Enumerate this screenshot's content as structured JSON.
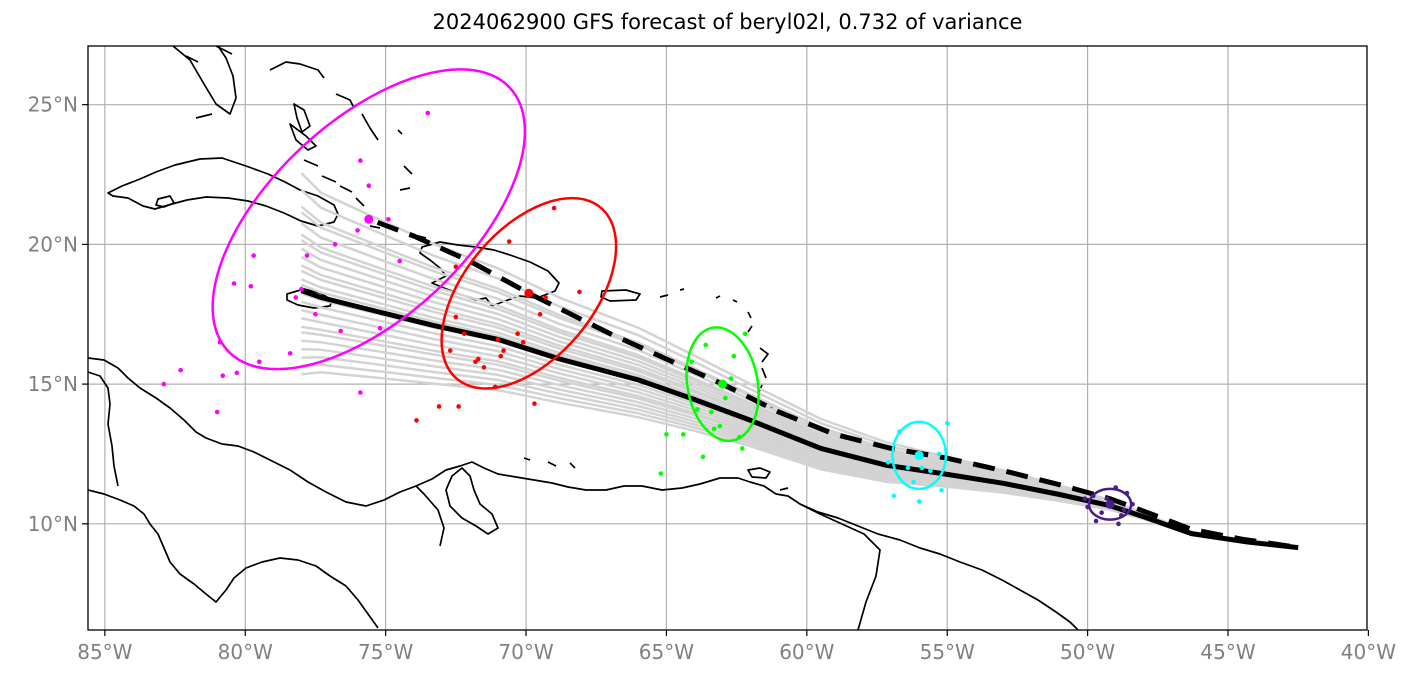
{
  "title": "2024062900 GFS forecast of beryl02l, 0.732 of variance",
  "axes": {
    "x_ticks": [
      {
        "lon": -85,
        "label": "85°W"
      },
      {
        "lon": -80,
        "label": "80°W"
      },
      {
        "lon": -75,
        "label": "75°W"
      },
      {
        "lon": -70,
        "label": "70°W"
      },
      {
        "lon": -65,
        "label": "65°W"
      },
      {
        "lon": -60,
        "label": "60°W"
      },
      {
        "lon": -55,
        "label": "55°W"
      },
      {
        "lon": -50,
        "label": "50°W"
      },
      {
        "lon": -45,
        "label": "45°W"
      },
      {
        "lon": -40,
        "label": "40°W"
      }
    ],
    "y_ticks": [
      {
        "lat": 10,
        "label": "10°N"
      },
      {
        "lat": 15,
        "label": "15°N"
      },
      {
        "lat": 20,
        "label": "20°N"
      },
      {
        "lat": 25,
        "label": "25°N"
      }
    ]
  },
  "chart_data": {
    "type": "map-track",
    "extent": {
      "lon": [
        -85.6,
        -40.05
      ],
      "lat": [
        6.2,
        27.1
      ]
    },
    "grid": true,
    "colors": {
      "ensemble": "#d3d3d3",
      "mean_track": "#000000",
      "coast": "#000000",
      "grid": "#b0b0b0"
    },
    "mean_track": [
      [
        -42.5,
        9.15
      ],
      [
        -44.3,
        9.35
      ],
      [
        -46.3,
        9.65
      ],
      [
        -48.0,
        10.25
      ],
      [
        -49.2,
        10.65
      ],
      [
        -51.0,
        11.05
      ],
      [
        -53.0,
        11.45
      ],
      [
        -55.2,
        11.8
      ],
      [
        -57.2,
        12.1
      ],
      [
        -59.5,
        12.7
      ],
      [
        -62.0,
        13.7
      ],
      [
        -64.0,
        14.45
      ],
      [
        -66.0,
        15.15
      ],
      [
        -68.8,
        15.9
      ],
      [
        -71.0,
        16.6
      ],
      [
        -73.3,
        17.1
      ],
      [
        -75.3,
        17.6
      ],
      [
        -77.3,
        18.1
      ],
      [
        -78.0,
        18.35
      ]
    ],
    "control_track": [
      [
        -42.8,
        9.2
      ],
      [
        -44.5,
        9.45
      ],
      [
        -46.3,
        9.8
      ],
      [
        -48.0,
        10.45
      ],
      [
        -49.2,
        10.9
      ],
      [
        -51.0,
        11.4
      ],
      [
        -53.0,
        11.9
      ],
      [
        -55.0,
        12.35
      ],
      [
        -57.0,
        12.7
      ],
      [
        -59.0,
        13.2
      ],
      [
        -61.0,
        14.0
      ],
      [
        -63.0,
        15.0
      ],
      [
        -65.0,
        15.9
      ],
      [
        -67.0,
        16.8
      ],
      [
        -69.8,
        18.2
      ],
      [
        -72.0,
        19.4
      ],
      [
        -74.0,
        20.3
      ],
      [
        -75.6,
        20.9
      ]
    ],
    "members_offsets": [
      [
        0.0,
        -0.1
      ],
      [
        0.0,
        2.4
      ],
      [
        0.0,
        -2.1
      ],
      [
        0.0,
        1.5
      ],
      [
        0.0,
        -1.3
      ],
      [
        0.0,
        0.9
      ],
      [
        0.0,
        -0.7
      ],
      [
        0.0,
        3.6
      ],
      [
        0.0,
        -2.7
      ],
      [
        0.0,
        2.0
      ],
      [
        0.0,
        -1.8
      ],
      [
        0.0,
        0.4
      ],
      [
        0.0,
        1.2
      ],
      [
        0.0,
        -0.4
      ],
      [
        0.0,
        3.0
      ],
      [
        0.0,
        -3.0
      ],
      [
        0.0,
        2.8
      ],
      [
        0.0,
        -1.0
      ],
      [
        0.0,
        0.7
      ],
      [
        0.0,
        1.8
      ],
      [
        0.0,
        -2.4
      ],
      [
        0.0,
        4.2
      ],
      [
        0.0,
        -1.5
      ],
      [
        0.0,
        0.2
      ]
    ],
    "forecast_clusters": [
      {
        "color": "#4b1c8c",
        "mean": [
          -49.2,
          10.7
        ],
        "ellipse": {
          "rx": 0.75,
          "ry": 0.55,
          "angle": 0
        },
        "points": [
          [
            -49.8,
            11.0
          ],
          [
            -48.8,
            10.3
          ],
          [
            -49.5,
            10.4
          ],
          [
            -48.6,
            11.1
          ],
          [
            -50.0,
            10.6
          ],
          [
            -49.0,
            11.3
          ],
          [
            -48.4,
            10.7
          ],
          [
            -49.7,
            10.1
          ],
          [
            -48.9,
            10.0
          ],
          [
            -50.1,
            10.9
          ],
          [
            -49.3,
            10.9
          ],
          [
            -48.7,
            10.5
          ]
        ]
      },
      {
        "color": "#00ffff",
        "mean": [
          -56.0,
          12.45
        ],
        "ellipse": {
          "rx": 0.95,
          "ry": 1.2,
          "angle": 0
        },
        "points": [
          [
            -56.4,
            12.0
          ],
          [
            -55.6,
            11.9
          ],
          [
            -55.0,
            13.6
          ],
          [
            -56.9,
            11.0
          ],
          [
            -56.0,
            10.8
          ],
          [
            -55.2,
            11.2
          ],
          [
            -56.7,
            13.3
          ],
          [
            -55.3,
            12.5
          ],
          [
            -57.1,
            12.2
          ],
          [
            -55.9,
            12.0
          ],
          [
            -56.2,
            11.5
          ]
        ]
      },
      {
        "color": "#00ff00",
        "mean": [
          -63.0,
          15.0
        ],
        "ellipse": {
          "rx": 1.25,
          "ry": 2.05,
          "angle": -10
        },
        "points": [
          [
            -63.4,
            14.0
          ],
          [
            -63.3,
            13.4
          ],
          [
            -62.7,
            15.2
          ],
          [
            -64.1,
            15.8
          ],
          [
            -64.4,
            13.2
          ],
          [
            -63.1,
            13.5
          ],
          [
            -62.4,
            13.1
          ],
          [
            -65.2,
            11.8
          ],
          [
            -63.7,
            12.4
          ],
          [
            -62.6,
            16.0
          ],
          [
            -62.2,
            16.8
          ],
          [
            -63.9,
            14.1
          ],
          [
            -62.9,
            14.5
          ],
          [
            -62.3,
            12.7
          ],
          [
            -65.0,
            13.2
          ],
          [
            -63.6,
            16.4
          ]
        ]
      },
      {
        "color": "#ff0000",
        "mean": [
          -69.9,
          18.25
        ],
        "ellipse": {
          "rx": 2.3,
          "ry": 4.0,
          "angle": 40
        },
        "points": [
          [
            -71.0,
            16.6
          ],
          [
            -72.5,
            17.4
          ],
          [
            -72.7,
            16.2
          ],
          [
            -73.1,
            14.2
          ],
          [
            -71.7,
            15.9
          ],
          [
            -71.8,
            15.8
          ],
          [
            -70.9,
            16.0
          ],
          [
            -70.8,
            16.2
          ],
          [
            -69.5,
            17.5
          ],
          [
            -69.7,
            14.3
          ],
          [
            -68.1,
            18.3
          ],
          [
            -69.0,
            21.3
          ],
          [
            -70.6,
            20.1
          ],
          [
            -71.5,
            15.6
          ],
          [
            -72.2,
            16.8
          ],
          [
            -72.4,
            14.2
          ],
          [
            -71.1,
            14.9
          ],
          [
            -73.9,
            13.7
          ],
          [
            -70.3,
            16.8
          ],
          [
            -69.3,
            18.1
          ],
          [
            -72.5,
            19.2
          ],
          [
            -70.1,
            16.5
          ]
        ]
      },
      {
        "color": "#ff00ff",
        "mean": [
          -75.6,
          20.9
        ],
        "ellipse": {
          "rx": 3.5,
          "ry": 6.9,
          "angle": 47
        },
        "points": [
          [
            -73.5,
            24.7
          ],
          [
            -75.9,
            23.0
          ],
          [
            -75.6,
            22.1
          ],
          [
            -76.0,
            20.5
          ],
          [
            -76.8,
            20.0
          ],
          [
            -78.0,
            18.4
          ],
          [
            -77.8,
            19.6
          ],
          [
            -79.7,
            19.6
          ],
          [
            -80.4,
            18.6
          ],
          [
            -79.8,
            18.5
          ],
          [
            -82.9,
            15.0
          ],
          [
            -82.3,
            15.5
          ],
          [
            -80.9,
            16.5
          ],
          [
            -80.3,
            15.4
          ],
          [
            -80.8,
            15.3
          ],
          [
            -79.5,
            15.8
          ],
          [
            -78.4,
            16.1
          ],
          [
            -77.5,
            17.5
          ],
          [
            -76.6,
            16.9
          ],
          [
            -78.2,
            18.1
          ],
          [
            -81.0,
            14.0
          ],
          [
            -75.9,
            14.7
          ],
          [
            -74.5,
            19.4
          ],
          [
            -74.9,
            20.9
          ],
          [
            -75.2,
            17.0
          ]
        ]
      }
    ]
  }
}
